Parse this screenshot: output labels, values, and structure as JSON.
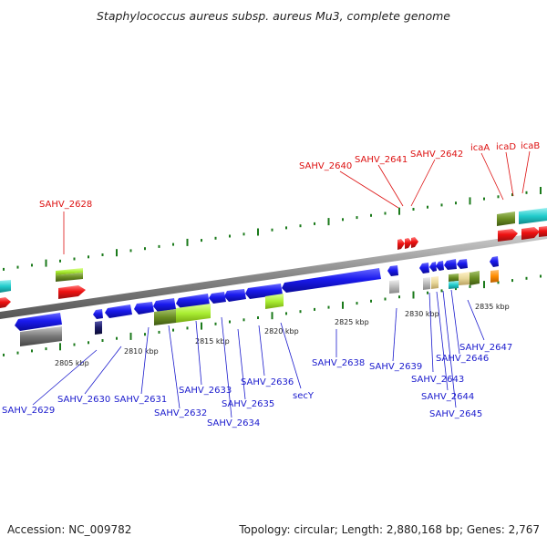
{
  "title": "Staphylococcus aureus subsp. aureus Mu3, complete genome",
  "footer": {
    "accession": "Accession: NC_009782",
    "summary": "Topology: circular; Length: 2,880,168 bp; Genes: 2,767"
  },
  "scale_labels": [
    "2805 kbp",
    "2810 kbp",
    "2815 kbp",
    "2820 kbp",
    "2825 kbp",
    "2830 kbp",
    "2835 kbp"
  ],
  "gene_labels_bottom": [
    "SAHV_2629",
    "SAHV_2630",
    "SAHV_2631",
    "SAHV_2632",
    "SAHV_2633",
    "SAHV_2634",
    "SAHV_2635",
    "SAHV_2636",
    "secY",
    "SAHV_2638",
    "SAHV_2639",
    "SAHV_2643",
    "SAHV_2644",
    "SAHV_2645",
    "SAHV_2646",
    "SAHV_2647"
  ],
  "gene_labels_top": [
    "SAHV_2628",
    "SAHV_2640",
    "SAHV_2641",
    "SAHV_2642",
    "icaA",
    "icaD",
    "icaB"
  ],
  "colors": {
    "blue_gene": "#1a1aee",
    "red_gene": "#ee1111",
    "cyan_feature": "#22cccc",
    "lime_feature": "#aaee33",
    "olive_feature": "#6b8e23",
    "grey_feature": "#777777",
    "orange_feature": "#ff8c00",
    "tick_green": "#1b7a1b",
    "backbone": "#8a8a8a"
  }
}
